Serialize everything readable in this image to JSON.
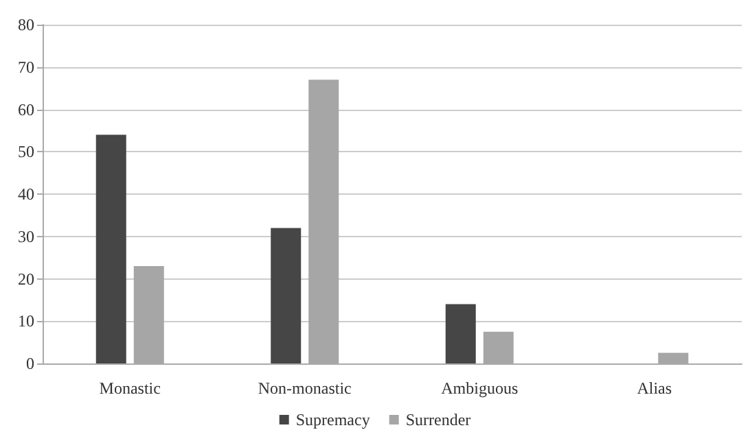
{
  "chart_data": {
    "type": "bar",
    "categories": [
      "Monastic",
      "Non-monastic",
      "Ambiguous",
      "Alias"
    ],
    "series": [
      {
        "name": "Supremacy",
        "color": "#464646",
        "values": [
          54,
          32,
          14,
          0
        ]
      },
      {
        "name": "Surrender",
        "color": "#a6a6a6",
        "values": [
          23,
          67,
          7.5,
          2.5
        ]
      }
    ],
    "ylim": [
      0,
      80
    ],
    "yticks": [
      0,
      10,
      20,
      30,
      40,
      50,
      60,
      70,
      80
    ],
    "grid": "y",
    "legend": "bottom"
  }
}
